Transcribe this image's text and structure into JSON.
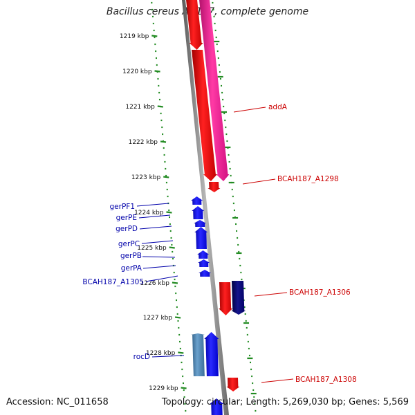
{
  "title": "Bacillus cereus AH187, complete genome",
  "footer": {
    "accession": "Accession: NC_011658",
    "info": "Topology: circular; Length: 5,269,030 bp; Genes: 5,569"
  },
  "colors": {
    "tick": "#228b22",
    "backbone": "#888888",
    "forward_label": "#cc0000",
    "reverse_label": "#0000aa",
    "gene_red": "#ff0000",
    "gene_pink": "#ff1493",
    "gene_blue": "#0000ff",
    "gene_navy": "#000080",
    "gene_steel": "#4682b4"
  },
  "ticks": [
    "1219 kbp",
    "1220 kbp",
    "1221 kbp",
    "1222 kbp",
    "1223 kbp",
    "1224 kbp",
    "1225 kbp",
    "1226 kbp",
    "1227 kbp",
    "1228 kbp",
    "1229 kbp"
  ],
  "forward_labels": [
    "addA",
    "BCAH187_A1298",
    "BCAH187_A1306",
    "BCAH187_A1308"
  ],
  "reverse_labels": [
    "gerPF1",
    "gerPE",
    "gerPD",
    "gerPC",
    "gerPB",
    "gerPA",
    "BCAH187_A1305",
    "rocD"
  ]
}
